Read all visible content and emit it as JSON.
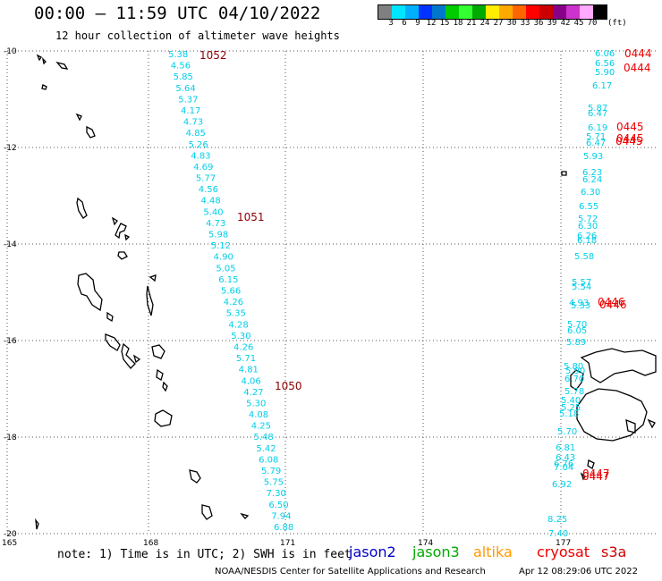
{
  "header": {
    "title": "00:00 – 11:59 UTC 04/10/2022",
    "subtitle": "12 hour collection of altimeter wave heights"
  },
  "legend": {
    "colors": [
      "#808080",
      "#00e5ff",
      "#00b0ff",
      "#0033ff",
      "#0077cc",
      "#00cc00",
      "#33ff33",
      "#00aa00",
      "#ffee00",
      "#ffaa00",
      "#ff6600",
      "#ff0000",
      "#cc0000",
      "#880088",
      "#cc33cc",
      "#ffaaff",
      "#000000"
    ],
    "labels": [
      "3",
      "6",
      "9",
      "12",
      "15",
      "18",
      "21",
      "24",
      "27",
      "30",
      "33",
      "36",
      "39",
      "42",
      "45",
      "70"
    ],
    "unit": "(ft)"
  },
  "axes": {
    "lat_labels": [
      "-10",
      "-12",
      "-14",
      "-16",
      "-18",
      "-20"
    ],
    "lon_labels": [
      "165",
      "168",
      "171",
      "174",
      "177"
    ]
  },
  "tracks": [
    {
      "name": "1052 / 1051 / 1050",
      "labels": [
        "1052",
        "1051",
        "1050"
      ],
      "values": [
        "5.38",
        "4.56",
        "5.85",
        "5.64",
        "5.37",
        "4.17",
        "4.73",
        "4.85",
        "5.26",
        "4.83",
        "4.69",
        "5.77",
        "4.56",
        "4.48",
        "5.40",
        "4.73",
        "5.98",
        "5.12",
        "4.90",
        "5.05",
        "6.15",
        "5.66",
        "4.26",
        "5.35",
        "4.28",
        "5.30",
        "4.26",
        "5.71",
        "4.81",
        "4.06",
        "4.27",
        "5.30",
        "4.08",
        "4.25",
        "5.48",
        "5.42",
        "6.08",
        "5.79",
        "5.75",
        "7.30",
        "6.50",
        "7.94",
        "6.88"
      ]
    },
    {
      "name": "0444 - 0447",
      "labels": [
        "0444",
        "0444",
        "0445",
        "0445",
        "0445",
        "0446",
        "0446",
        "0447",
        "0447"
      ],
      "values": [
        "6.06",
        "6.56",
        "5.90",
        "6.17",
        "5.87",
        "6.47",
        "6.19",
        "5.71",
        "6.47",
        "5.93",
        "6.23",
        "6.24",
        "6.30",
        "6.55",
        "5.72",
        "6.30",
        "6.26",
        "6.18",
        "5.58",
        "5.57",
        "5.54",
        "4.93",
        "5.33",
        "5.70",
        "6.05",
        "5.89",
        "5.80",
        "5.90",
        "6.70",
        "5.78",
        "5.40",
        "5.25",
        "5.18",
        "5.70",
        "6.81",
        "6.43",
        "6.76",
        "7.04",
        "6.92",
        "8.25",
        "7.40"
      ]
    }
  ],
  "footer": {
    "note": "note: 1) Time is in UTC; 2) SWH is in feet",
    "satellites": [
      {
        "name": "jason2",
        "color": "#0000cc"
      },
      {
        "name": "jason3",
        "color": "#00aa00"
      },
      {
        "name": "altika",
        "color": "#ff9900"
      },
      {
        "name": "cryosat",
        "color": "#ee0000"
      },
      {
        "name": "s3a",
        "color": "#cc0000"
      }
    ],
    "credit": "NOAA/NESDIS Center for Satellite Applications and Research",
    "timestamp": "Apr 12 08:29:06 UTC 2022"
  }
}
